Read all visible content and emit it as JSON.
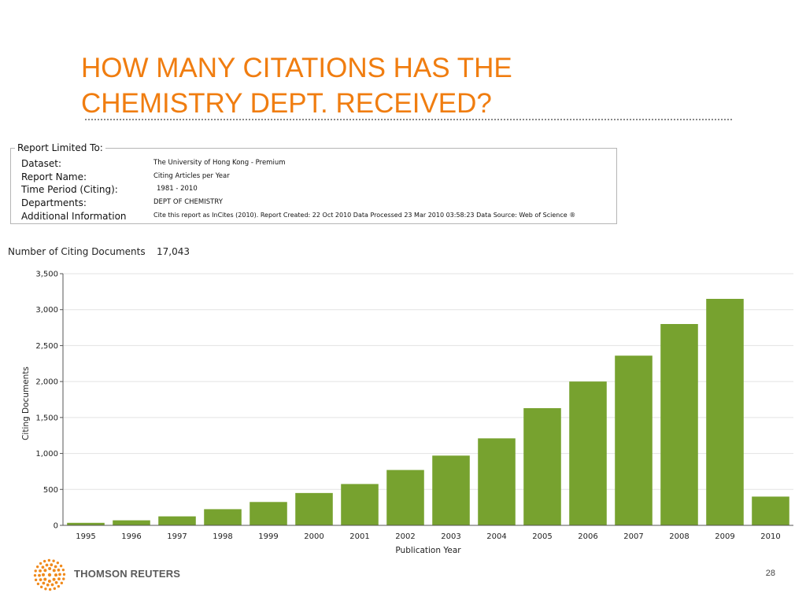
{
  "slide": {
    "title_lines": [
      "HOW MANY CITATIONS HAS THE",
      "CHEMISTRY DEPT. RECEIVED?"
    ],
    "title_color": "#f07d10",
    "page_number": "28"
  },
  "report": {
    "legend": "Report Limited To:",
    "rows": [
      {
        "label": "Dataset:",
        "value": "The University of Hong Kong - Premium"
      },
      {
        "label": "Report Name:",
        "value": "Citing Articles per Year"
      },
      {
        "label": "Time Period (Citing):",
        "value": "1981 - 2010"
      },
      {
        "label": "Departments:",
        "value": "DEPT OF CHEMISTRY"
      },
      {
        "label": "Additional Information",
        "value": "Cite this report as InCites (2010). Report Created: 22 Oct 2010  Data Processed 23 Mar 2010 03:58:23  Data Source: Web of Science ®"
      }
    ]
  },
  "summary": {
    "label": "Number of Citing Documents",
    "value": "17,043"
  },
  "chart_data": {
    "type": "bar",
    "categories": [
      "1995",
      "1996",
      "1997",
      "1998",
      "1999",
      "2000",
      "2001",
      "2002",
      "2003",
      "2004",
      "2005",
      "2006",
      "2007",
      "2008",
      "2009",
      "2010"
    ],
    "values": [
      35,
      70,
      125,
      225,
      325,
      450,
      575,
      770,
      970,
      1210,
      1630,
      2000,
      2360,
      2800,
      3150,
      400
    ],
    "xlabel": "Publication Year",
    "ylabel": "Citing Documents",
    "ylim": [
      0,
      3500
    ],
    "yticks": [
      0,
      500,
      1000,
      1500,
      2000,
      2500,
      3000,
      3500
    ],
    "ytick_labels": [
      "0",
      "500",
      "1,000",
      "1,500",
      "2,000",
      "2,500",
      "3,000",
      "3,500"
    ],
    "bar_color": "#77a22f",
    "grid": true
  },
  "footer": {
    "brand": "THOMSON REUTERS",
    "logo_color": "#f08a1c",
    "logo_icon": "thomson-reuters-dot-logo"
  }
}
